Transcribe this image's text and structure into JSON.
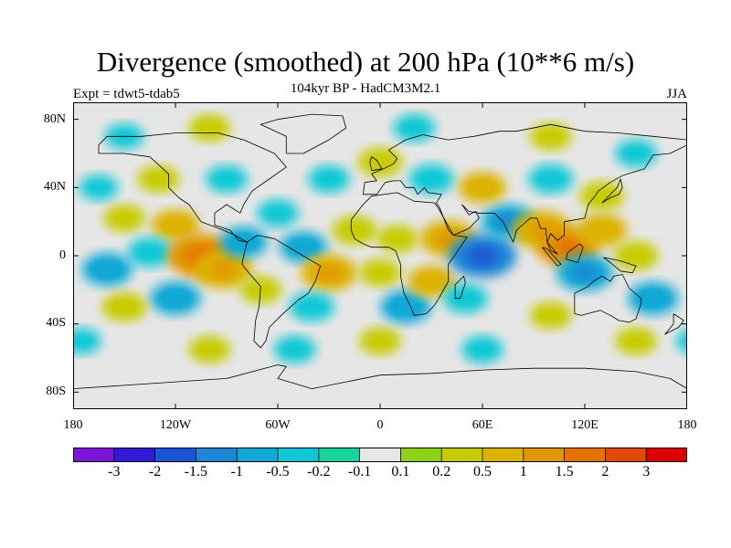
{
  "title": "Divergence (smoothed) at 200 hPa (10**6 m/s)",
  "subtitle": "104kyr BP - HadCM3M2.1",
  "experiment": "Expt = tdwt5-tdab5",
  "season": "JJA",
  "lat_ticks": [
    "80N",
    "40N",
    "0",
    "40S",
    "80S"
  ],
  "lon_ticks": [
    "180",
    "120W",
    "60W",
    "0",
    "60E",
    "120E",
    "180"
  ],
  "colorbar": {
    "colors": [
      "#7b16d9",
      "#3319d6",
      "#1a55d6",
      "#1d86d6",
      "#11a8d6",
      "#0fc8d6",
      "#15d49c",
      "#e6e6e6",
      "#8fd21a",
      "#c7cc00",
      "#dcb300",
      "#e29600",
      "#e47200",
      "#e24a00",
      "#dc0000"
    ],
    "labels": [
      "-3",
      "-2",
      "-1.5",
      "-1",
      "-0.5",
      "-0.2",
      "-0.1",
      "0.1",
      "0.2",
      "0.5",
      "1",
      "1.5",
      "2",
      "3"
    ]
  },
  "field_palette": {
    "background": "#e6e6e6",
    "coast": "#000000",
    "pos1": "#8fd21a",
    "pos2": "#c7cc00",
    "pos3": "#dcb300",
    "pos4": "#e29600",
    "pos5": "#e47200",
    "neg1": "#15d49c",
    "neg2": "#0fc8d6",
    "neg3": "#11a8d6",
    "neg4": "#1d86d6",
    "neg5": "#1a55d6"
  },
  "field": [
    {
      "lon": -150,
      "lat": 22,
      "value": 0.3
    },
    {
      "lon": -120,
      "lat": 18,
      "value": 0.5
    },
    {
      "lon": -135,
      "lat": 2,
      "value": -0.4
    },
    {
      "lon": -160,
      "lat": -8,
      "value": -0.6
    },
    {
      "lon": -105,
      "lat": 0,
      "value": 1.2
    },
    {
      "lon": -92,
      "lat": -8,
      "value": 0.9
    },
    {
      "lon": -80,
      "lat": 8,
      "value": -0.5
    },
    {
      "lon": -120,
      "lat": -25,
      "value": -0.6
    },
    {
      "lon": -150,
      "lat": -30,
      "value": 0.4
    },
    {
      "lon": -70,
      "lat": -20,
      "value": 0.3
    },
    {
      "lon": -60,
      "lat": 25,
      "value": -0.3
    },
    {
      "lon": -45,
      "lat": 5,
      "value": -0.5
    },
    {
      "lon": -30,
      "lat": -10,
      "value": 0.8
    },
    {
      "lon": -15,
      "lat": 15,
      "value": 0.4
    },
    {
      "lon": -40,
      "lat": -30,
      "value": -0.4
    },
    {
      "lon": 0,
      "lat": -10,
      "value": 0.3
    },
    {
      "lon": 10,
      "lat": 10,
      "value": 0.3
    },
    {
      "lon": 15,
      "lat": -30,
      "value": -0.6
    },
    {
      "lon": 30,
      "lat": -15,
      "value": 0.5
    },
    {
      "lon": 40,
      "lat": 10,
      "value": 0.8
    },
    {
      "lon": 60,
      "lat": 0,
      "value": -1.2
    },
    {
      "lon": 50,
      "lat": -25,
      "value": -0.4
    },
    {
      "lon": 75,
      "lat": 20,
      "value": -0.7
    },
    {
      "lon": 95,
      "lat": 15,
      "value": 0.9
    },
    {
      "lon": 110,
      "lat": 5,
      "value": 1.0
    },
    {
      "lon": 120,
      "lat": -10,
      "value": -0.8
    },
    {
      "lon": 130,
      "lat": 15,
      "value": 0.6
    },
    {
      "lon": 150,
      "lat": 0,
      "value": 0.4
    },
    {
      "lon": 160,
      "lat": -25,
      "value": -0.6
    },
    {
      "lon": 130,
      "lat": 35,
      "value": 0.4
    },
    {
      "lon": 30,
      "lat": 45,
      "value": -0.4
    },
    {
      "lon": 60,
      "lat": 40,
      "value": 0.5
    },
    {
      "lon": 100,
      "lat": 45,
      "value": -0.4
    },
    {
      "lon": -90,
      "lat": 45,
      "value": -0.3
    },
    {
      "lon": -130,
      "lat": 45,
      "value": 0.3
    },
    {
      "lon": 0,
      "lat": 55,
      "value": 0.4
    },
    {
      "lon": -30,
      "lat": 45,
      "value": -0.3
    },
    {
      "lon": -100,
      "lat": 75,
      "value": 0.3
    },
    {
      "lon": 20,
      "lat": 75,
      "value": -0.3
    },
    {
      "lon": 100,
      "lat": 70,
      "value": 0.3
    },
    {
      "lon": 150,
      "lat": 60,
      "value": -0.3
    },
    {
      "lon": -150,
      "lat": 70,
      "value": -0.2
    },
    {
      "lon": -100,
      "lat": -55,
      "value": 0.3
    },
    {
      "lon": 0,
      "lat": -50,
      "value": 0.3
    },
    {
      "lon": 60,
      "lat": -55,
      "value": -0.3
    },
    {
      "lon": 150,
      "lat": -50,
      "value": 0.3
    },
    {
      "lon": -50,
      "lat": -55,
      "value": -0.3
    },
    {
      "lon": 100,
      "lat": -35,
      "value": 0.3
    },
    {
      "lon": -175,
      "lat": -50,
      "value": -0.2
    },
    {
      "lon": -165,
      "lat": 40,
      "value": -0.2
    }
  ],
  "coastlines": [
    {
      "name": "north-america",
      "points": [
        [
          -165,
          65
        ],
        [
          -160,
          70
        ],
        [
          -140,
          70
        ],
        [
          -120,
          72
        ],
        [
          -95,
          72
        ],
        [
          -80,
          68
        ],
        [
          -62,
          60
        ],
        [
          -55,
          52
        ],
        [
          -65,
          45
        ],
        [
          -75,
          38
        ],
        [
          -80,
          30
        ],
        [
          -82,
          25
        ],
        [
          -90,
          30
        ],
        [
          -97,
          25
        ],
        [
          -97,
          18
        ],
        [
          -88,
          15
        ],
        [
          -83,
          9
        ],
        [
          -78,
          8
        ],
        [
          -85,
          12
        ],
        [
          -92,
          15
        ],
        [
          -105,
          20
        ],
        [
          -112,
          30
        ],
        [
          -118,
          34
        ],
        [
          -124,
          40
        ],
        [
          -124,
          48
        ],
        [
          -135,
          58
        ],
        [
          -150,
          60
        ],
        [
          -165,
          60
        ],
        [
          -165,
          65
        ]
      ]
    },
    {
      "name": "south-america",
      "points": [
        [
          -78,
          8
        ],
        [
          -72,
          12
        ],
        [
          -62,
          10
        ],
        [
          -52,
          4
        ],
        [
          -35,
          -6
        ],
        [
          -38,
          -15
        ],
        [
          -42,
          -22
        ],
        [
          -48,
          -26
        ],
        [
          -58,
          -35
        ],
        [
          -65,
          -42
        ],
        [
          -67,
          -50
        ],
        [
          -70,
          -54
        ],
        [
          -74,
          -50
        ],
        [
          -73,
          -38
        ],
        [
          -71,
          -30
        ],
        [
          -70,
          -18
        ],
        [
          -77,
          -10
        ],
        [
          -81,
          -5
        ],
        [
          -80,
          0
        ],
        [
          -78,
          8
        ]
      ]
    },
    {
      "name": "greenland",
      "points": [
        [
          -55,
          60
        ],
        [
          -45,
          60
        ],
        [
          -30,
          68
        ],
        [
          -20,
          75
        ],
        [
          -22,
          82
        ],
        [
          -40,
          83
        ],
        [
          -60,
          80
        ],
        [
          -70,
          77
        ],
        [
          -55,
          70
        ],
        [
          -55,
          60
        ]
      ]
    },
    {
      "name": "africa",
      "points": [
        [
          -17,
          15
        ],
        [
          -17,
          21
        ],
        [
          -10,
          30
        ],
        [
          -5,
          35
        ],
        [
          10,
          37
        ],
        [
          20,
          32
        ],
        [
          32,
          31
        ],
        [
          34,
          28
        ],
        [
          43,
          12
        ],
        [
          51,
          11
        ],
        [
          45,
          2
        ],
        [
          40,
          -5
        ],
        [
          40,
          -15
        ],
        [
          35,
          -24
        ],
        [
          32,
          -29
        ],
        [
          27,
          -34
        ],
        [
          20,
          -35
        ],
        [
          18,
          -30
        ],
        [
          14,
          -22
        ],
        [
          12,
          -12
        ],
        [
          12,
          -5
        ],
        [
          9,
          3
        ],
        [
          5,
          5
        ],
        [
          -5,
          5
        ],
        [
          -10,
          7
        ],
        [
          -15,
          10
        ],
        [
          -17,
          15
        ]
      ]
    },
    {
      "name": "eurasia",
      "points": [
        [
          -10,
          36
        ],
        [
          -9,
          43
        ],
        [
          -2,
          44
        ],
        [
          -5,
          48
        ],
        [
          2,
          51
        ],
        [
          8,
          54
        ],
        [
          10,
          57
        ],
        [
          5,
          62
        ],
        [
          15,
          68
        ],
        [
          25,
          71
        ],
        [
          40,
          68
        ],
        [
          55,
          70
        ],
        [
          70,
          73
        ],
        [
          80,
          73
        ],
        [
          100,
          77
        ],
        [
          120,
          73
        ],
        [
          140,
          72
        ],
        [
          160,
          70
        ],
        [
          180,
          68
        ],
        [
          180,
          65
        ],
        [
          170,
          60
        ],
        [
          160,
          59
        ],
        [
          155,
          51
        ],
        [
          142,
          47
        ],
        [
          135,
          43
        ],
        [
          128,
          38
        ],
        [
          126,
          35
        ],
        [
          122,
          30
        ],
        [
          120,
          22
        ],
        [
          108,
          20
        ],
        [
          108,
          12
        ],
        [
          104,
          9
        ],
        [
          100,
          13
        ],
        [
          98,
          8
        ],
        [
          100,
          3
        ],
        [
          104,
          1
        ],
        [
          98,
          8
        ],
        [
          97,
          16
        ],
        [
          94,
          16
        ],
        [
          92,
          22
        ],
        [
          88,
          22
        ],
        [
          80,
          15
        ],
        [
          78,
          8
        ],
        [
          72,
          20
        ],
        [
          67,
          25
        ],
        [
          58,
          25
        ],
        [
          52,
          26
        ],
        [
          48,
          30
        ],
        [
          52,
          24
        ],
        [
          56,
          26
        ],
        [
          58,
          22
        ],
        [
          52,
          16
        ],
        [
          43,
          12
        ],
        [
          40,
          15
        ],
        [
          35,
          28
        ],
        [
          33,
          31
        ],
        [
          36,
          36
        ],
        [
          28,
          37
        ],
        [
          26,
          40
        ],
        [
          22,
          36
        ],
        [
          20,
          40
        ],
        [
          15,
          40
        ],
        [
          12,
          44
        ],
        [
          8,
          44
        ],
        [
          3,
          43
        ],
        [
          -2,
          36
        ],
        [
          -10,
          36
        ]
      ]
    },
    {
      "name": "australia",
      "points": [
        [
          114,
          -22
        ],
        [
          114,
          -34
        ],
        [
          118,
          -35
        ],
        [
          129,
          -32
        ],
        [
          135,
          -35
        ],
        [
          140,
          -38
        ],
        [
          146,
          -39
        ],
        [
          150,
          -37
        ],
        [
          153,
          -28
        ],
        [
          153,
          -25
        ],
        [
          146,
          -19
        ],
        [
          142,
          -11
        ],
        [
          137,
          -12
        ],
        [
          135,
          -15
        ],
        [
          130,
          -12
        ],
        [
          125,
          -15
        ],
        [
          122,
          -18
        ],
        [
          114,
          -22
        ]
      ]
    },
    {
      "name": "antarctica",
      "points": [
        [
          -180,
          -78
        ],
        [
          -150,
          -76
        ],
        [
          -120,
          -74
        ],
        [
          -90,
          -72
        ],
        [
          -60,
          -64
        ],
        [
          -55,
          -65
        ],
        [
          -60,
          -72
        ],
        [
          -40,
          -78
        ],
        [
          0,
          -70
        ],
        [
          30,
          -69
        ],
        [
          60,
          -67
        ],
        [
          90,
          -66
        ],
        [
          120,
          -66
        ],
        [
          150,
          -68
        ],
        [
          170,
          -72
        ],
        [
          180,
          -78
        ]
      ]
    },
    {
      "name": "madagascar",
      "points": [
        [
          44,
          -25
        ],
        [
          44,
          -17
        ],
        [
          49,
          -12
        ],
        [
          50,
          -16
        ],
        [
          47,
          -25
        ],
        [
          44,
          -25
        ]
      ]
    },
    {
      "name": "british-isles",
      "points": [
        [
          -5,
          50
        ],
        [
          1,
          51
        ],
        [
          -2,
          56
        ],
        [
          -5,
          58
        ],
        [
          -6,
          55
        ],
        [
          -5,
          50
        ]
      ]
    },
    {
      "name": "japan",
      "points": [
        [
          130,
          31
        ],
        [
          135,
          34
        ],
        [
          140,
          36
        ],
        [
          142,
          40
        ],
        [
          141,
          45
        ],
        [
          139,
          40
        ],
        [
          133,
          34
        ],
        [
          130,
          31
        ]
      ]
    },
    {
      "name": "new-zealand",
      "points": [
        [
          172,
          -34
        ],
        [
          178,
          -38
        ],
        [
          175,
          -42
        ],
        [
          167,
          -46
        ],
        [
          172,
          -40
        ],
        [
          172,
          -34
        ]
      ]
    },
    {
      "name": "borneo",
      "points": [
        [
          109,
          -2
        ],
        [
          110,
          2
        ],
        [
          117,
          7
        ],
        [
          119,
          5
        ],
        [
          116,
          -4
        ],
        [
          109,
          -2
        ]
      ]
    },
    {
      "name": "sumatra",
      "points": [
        [
          95,
          5
        ],
        [
          98,
          4
        ],
        [
          106,
          -5
        ],
        [
          104,
          -6
        ],
        [
          95,
          5
        ]
      ]
    },
    {
      "name": "new-guinea",
      "points": [
        [
          131,
          -1
        ],
        [
          141,
          -3
        ],
        [
          150,
          -6
        ],
        [
          148,
          -10
        ],
        [
          141,
          -9
        ],
        [
          135,
          -4
        ],
        [
          131,
          -1
        ]
      ]
    }
  ]
}
